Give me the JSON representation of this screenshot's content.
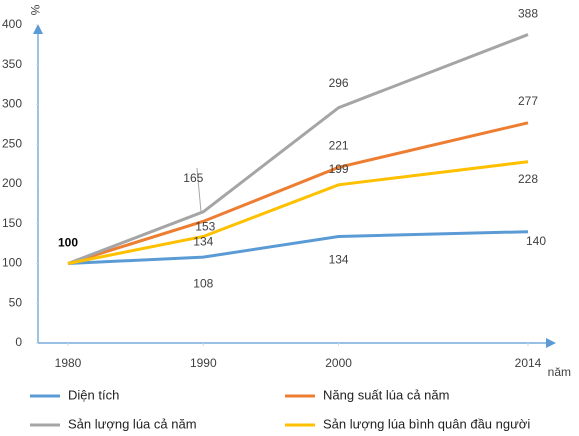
{
  "chart_data": {
    "type": "line",
    "y_label": "%",
    "x_label": "năm",
    "x": [
      1980,
      1990,
      2000,
      2014
    ],
    "xlim": [
      1980,
      2014
    ],
    "xticks": [
      1980,
      1990,
      2000,
      2014
    ],
    "ylim": [
      0,
      400
    ],
    "yticks": [
      0,
      50,
      100,
      150,
      200,
      250,
      300,
      350,
      400
    ],
    "grid": false,
    "series": [
      {
        "name": "Diện tích",
        "color": "#5b9bd5",
        "values": [
          100,
          108,
          134,
          140
        ]
      },
      {
        "name": "Năng suất lúa cả năm",
        "color": "#ed7d31",
        "values": [
          100,
          153,
          221,
          277
        ]
      },
      {
        "name": "Sản lượng lúa cả năm",
        "color": "#a5a5a5",
        "values": [
          100,
          165,
          296,
          388
        ]
      },
      {
        "name": "Sản lượng lúa bình quân đầu người",
        "color": "#ffc000",
        "values": [
          100,
          134,
          199,
          228
        ]
      }
    ]
  }
}
